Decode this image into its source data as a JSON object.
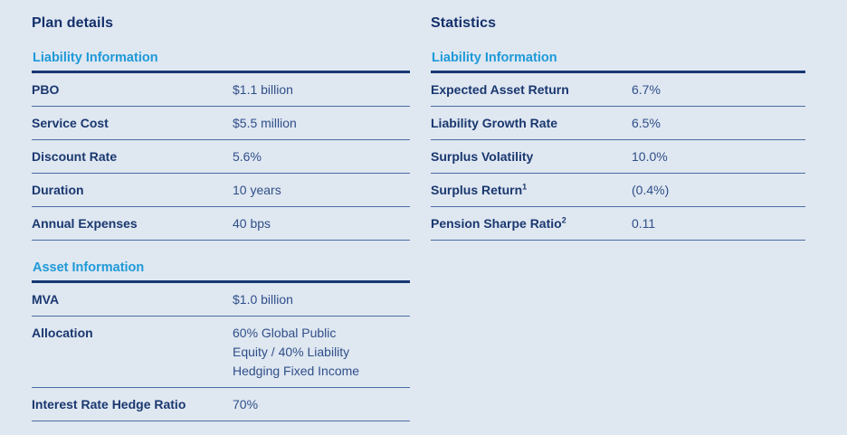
{
  "colors": {
    "background": "#dfe7f1",
    "title_navy": "#13306b",
    "label_navy": "#1a386f",
    "value_blue": "#2f4f88",
    "section_heading_blue": "#1e9ad8",
    "thick_rule": "#183874",
    "thin_rule": "#4a6da3"
  },
  "plan": {
    "title": "Plan details",
    "sections": [
      {
        "heading": "Liability Information",
        "rows": [
          {
            "label": "PBO",
            "value": "$1.1 billion"
          },
          {
            "label": "Service Cost",
            "value": "$5.5 million"
          },
          {
            "label": "Discount Rate",
            "value": "5.6%"
          },
          {
            "label": "Duration",
            "value": "10 years"
          },
          {
            "label": "Annual Expenses",
            "value": "40 bps"
          }
        ]
      },
      {
        "heading": "Asset Information",
        "rows": [
          {
            "label": "MVA",
            "value": "$1.0 billion"
          },
          {
            "label": "Allocation",
            "value": "60% Global Public Equity / 40% Liability Hedging Fixed Income"
          },
          {
            "label": "Interest Rate Hedge Ratio",
            "value": "70%"
          }
        ]
      }
    ]
  },
  "statistics": {
    "title": "Statistics",
    "sections": [
      {
        "heading": "Liability Information",
        "rows": [
          {
            "label": "Expected Asset Return",
            "value": "6.7%"
          },
          {
            "label": "Liability Growth Rate",
            "value": "6.5%"
          },
          {
            "label": "Surplus Volatility",
            "value": "10.0%"
          },
          {
            "label": "Surplus Return",
            "sup": "1",
            "value": "(0.4%)"
          },
          {
            "label": "Pension Sharpe Ratio",
            "sup": "2",
            "value": "0.11"
          }
        ]
      }
    ]
  }
}
